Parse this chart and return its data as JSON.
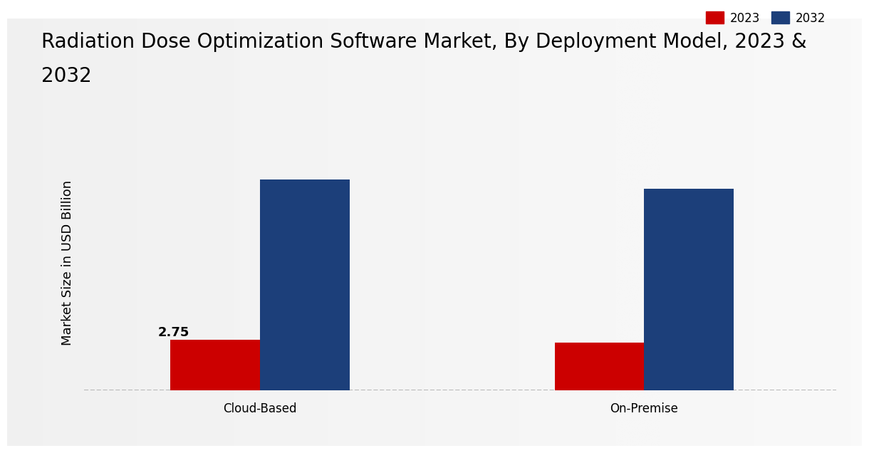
{
  "title_line1": "Radiation Dose Optimization Software Market, By Deployment Model, 2023 &",
  "title_line2": "2032",
  "ylabel": "Market Size in USD Billion",
  "categories": [
    "Cloud-Based",
    "On-Premise"
  ],
  "series": {
    "2023": [
      2.75,
      2.6
    ],
    "2032": [
      11.5,
      11.0
    ]
  },
  "bar_colors": {
    "2023": "#cc0000",
    "2032": "#1c3f7a"
  },
  "annotation_2023_cloud": "2.75",
  "bar_width": 0.28,
  "ylim": [
    0,
    14
  ],
  "background_color_top": "#f0f0f0",
  "background_color_bottom": "#d8d8d8",
  "legend_labels": [
    "2023",
    "2032"
  ],
  "bottom_strip_color": "#cc0000",
  "dashed_line_color": "#aaaaaa",
  "title_fontsize": 20,
  "label_fontsize": 13,
  "tick_fontsize": 12,
  "annotation_fontsize": 13,
  "x_positions": [
    0.55,
    1.75
  ],
  "xlim": [
    0.0,
    2.35
  ]
}
